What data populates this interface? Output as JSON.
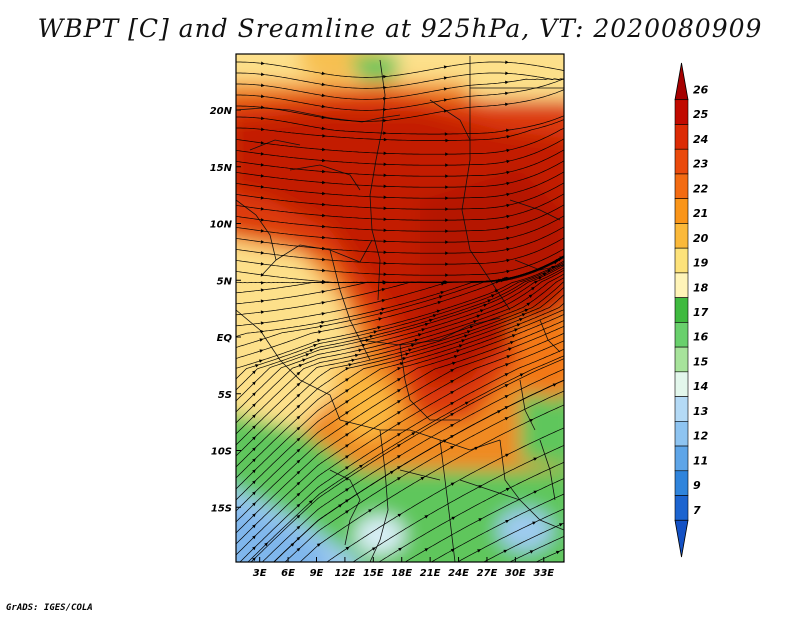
{
  "title": "WBPT [C] and Sreamline at 925hPa, VT: 2020080909",
  "credit": "GrADS: IGES/COLA",
  "lat_ticks": [
    {
      "label": "20N",
      "value": 20
    },
    {
      "label": "15N",
      "value": 15
    },
    {
      "label": "10N",
      "value": 10
    },
    {
      "label": "5N",
      "value": 5
    },
    {
      "label": "EQ",
      "value": 0
    },
    {
      "label": "5S",
      "value": -5
    },
    {
      "label": "10S",
      "value": -10
    },
    {
      "label": "15S",
      "value": -15
    }
  ],
  "lon_ticks": [
    {
      "label": "3E",
      "value": 3
    },
    {
      "label": "6E",
      "value": 6
    },
    {
      "label": "9E",
      "value": 9
    },
    {
      "label": "12E",
      "value": 12
    },
    {
      "label": "15E",
      "value": 15
    },
    {
      "label": "18E",
      "value": 18
    },
    {
      "label": "21E",
      "value": 21
    },
    {
      "label": "24E",
      "value": 24
    },
    {
      "label": "27E",
      "value": 27
    },
    {
      "label": "30E",
      "value": 30
    },
    {
      "label": "33E",
      "value": 33
    }
  ],
  "colorbar": {
    "labels": [
      "26",
      "25",
      "24",
      "23",
      "22",
      "21",
      "20",
      "19",
      "18",
      "17",
      "16",
      "15",
      "14",
      "13",
      "12",
      "11",
      "9",
      "7"
    ],
    "colors": [
      "#a50000",
      "#c10a00",
      "#dc2b05",
      "#ea4a0c",
      "#f36b12",
      "#fa9519",
      "#fbb93a",
      "#fde27a",
      "#fff4b8",
      "#3fba3f",
      "#69d06c",
      "#a7e39b",
      "#e3f7ec",
      "#b4daf6",
      "#8ec4f1",
      "#5ea5e8",
      "#2f84dc",
      "#1c64d0",
      "#1351c4"
    ]
  },
  "colors": {
    "hot": "#c31e06",
    "warm": "#f37818",
    "mild": "#fde08a",
    "green": "#5fc65b",
    "cool": "#9ecbef",
    "streamline": "#000000"
  }
}
